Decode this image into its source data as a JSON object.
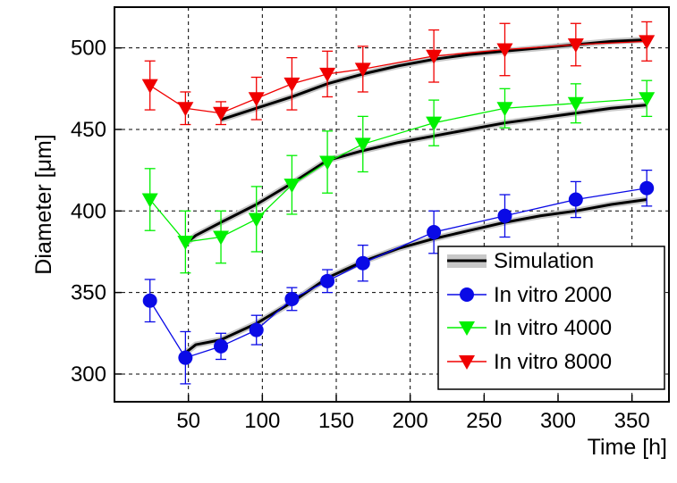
{
  "chart_data": {
    "type": "line",
    "xlabel": "Time [h]",
    "ylabel": "Diameter [μm]",
    "xlim": [
      0,
      375
    ],
    "ylim": [
      283,
      525
    ],
    "xticks": [
      50,
      100,
      150,
      200,
      250,
      300,
      350
    ],
    "yticks": [
      300,
      350,
      400,
      450,
      500
    ],
    "grid": true,
    "legend_position": "bottom-right",
    "legend": [
      "Simulation",
      "In vitro 2000",
      "In vitro 4000",
      "In vitro 8000"
    ],
    "simulation": {
      "name": "Simulation",
      "color": "#000000",
      "curves": [
        {
          "x": [
            48,
            55,
            72,
            96,
            120,
            144,
            168,
            192,
            216,
            240,
            264,
            288,
            312,
            336,
            360
          ],
          "y": [
            313,
            318,
            321,
            331,
            344,
            359,
            369,
            377,
            383,
            388,
            393,
            397,
            400,
            404,
            407
          ]
        },
        {
          "x": [
            48,
            55,
            72,
            96,
            120,
            144,
            168,
            192,
            216,
            240,
            264,
            288,
            312,
            336,
            360
          ],
          "y": [
            380,
            385,
            393,
            404,
            417,
            431,
            437,
            442,
            446,
            450,
            454,
            457,
            460,
            463,
            465
          ]
        },
        {
          "x": [
            72,
            96,
            120,
            144,
            168,
            192,
            216,
            240,
            264,
            288,
            312,
            336,
            360
          ],
          "y": [
            456,
            463,
            470,
            478,
            484,
            489,
            493,
            496,
            498,
            500,
            502,
            504,
            505
          ]
        }
      ]
    },
    "series": [
      {
        "name": "In vitro 2000",
        "color": "#0a0ae6",
        "marker": "circle",
        "x": [
          24,
          48,
          72,
          96,
          120,
          144,
          168,
          216,
          264,
          312,
          360
        ],
        "y": [
          345,
          310,
          317,
          327,
          346,
          357,
          368,
          387,
          397,
          407,
          414
        ],
        "err": [
          13,
          16,
          8,
          9,
          7,
          7,
          11,
          13,
          13,
          11,
          11
        ]
      },
      {
        "name": "In vitro 4000",
        "color": "#00f000",
        "marker": "triangle-down",
        "x": [
          24,
          48,
          72,
          96,
          120,
          144,
          168,
          216,
          264,
          312,
          360
        ],
        "y": [
          407,
          381,
          384,
          395,
          416,
          430,
          441,
          454,
          463,
          466,
          469
        ],
        "err": [
          19,
          19,
          16,
          20,
          18,
          19,
          17,
          14,
          12,
          12,
          11
        ]
      },
      {
        "name": "In vitro 8000",
        "color": "#f00000",
        "marker": "triangle-down",
        "x": [
          24,
          48,
          72,
          96,
          120,
          144,
          168,
          216,
          264,
          312,
          360
        ],
        "y": [
          477,
          463,
          460,
          469,
          478,
          484,
          487,
          495,
          499,
          502,
          504
        ],
        "err": [
          15,
          10,
          7,
          13,
          16,
          14,
          14,
          16,
          16,
          13,
          12
        ]
      }
    ]
  }
}
